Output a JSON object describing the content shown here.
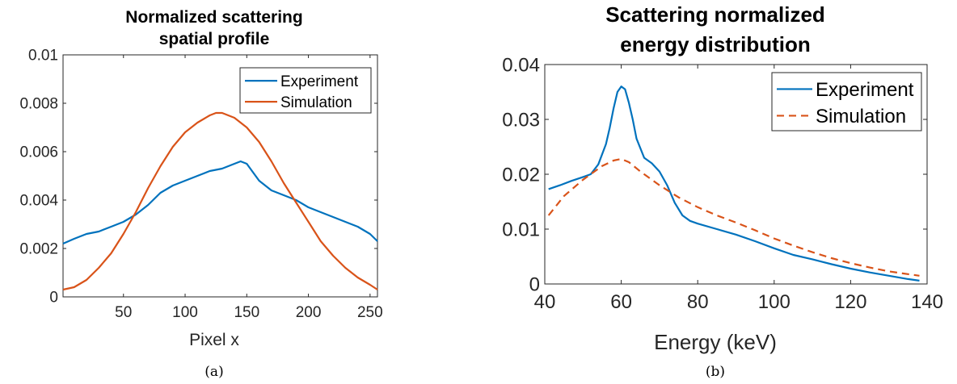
{
  "figure": {
    "captions": [
      "(a)",
      "(b)"
    ]
  },
  "chart_data": [
    {
      "type": "line",
      "title": [
        "Normalized scattering",
        "spatial profile"
      ],
      "xlabel": "Pixel x",
      "ylabel": "",
      "xlim": [
        1,
        256
      ],
      "ylim": [
        0,
        0.01
      ],
      "xticks": [
        50,
        100,
        150,
        200,
        250
      ],
      "yticks": [
        0,
        0.002,
        0.004,
        0.006,
        0.008,
        0.01
      ],
      "xtick_labels": [
        "50",
        "100",
        "150",
        "200",
        "250"
      ],
      "ytick_labels": [
        "0",
        "0.002",
        "0.004",
        "0.006",
        "0.008",
        "0.01"
      ],
      "grid": false,
      "legend": "top-right",
      "series": [
        {
          "name": "Experiment",
          "color": "#0072BD",
          "style": "solid",
          "x": [
            1,
            10,
            20,
            30,
            40,
            50,
            60,
            70,
            80,
            90,
            100,
            110,
            120,
            130,
            140,
            145,
            150,
            160,
            170,
            180,
            190,
            200,
            210,
            220,
            230,
            240,
            250,
            256
          ],
          "y": [
            0.0022,
            0.0024,
            0.0026,
            0.0027,
            0.0029,
            0.0031,
            0.0034,
            0.0038,
            0.0043,
            0.0046,
            0.0048,
            0.005,
            0.0052,
            0.0053,
            0.0055,
            0.0056,
            0.0055,
            0.0048,
            0.0044,
            0.0042,
            0.004,
            0.0037,
            0.0035,
            0.0033,
            0.0031,
            0.0029,
            0.0026,
            0.0023
          ]
        },
        {
          "name": "Simulation",
          "color": "#D95319",
          "style": "solid",
          "x": [
            1,
            10,
            20,
            30,
            40,
            50,
            60,
            70,
            80,
            90,
            100,
            110,
            120,
            125,
            130,
            140,
            150,
            160,
            170,
            180,
            190,
            200,
            210,
            220,
            230,
            240,
            250,
            256
          ],
          "y": [
            0.0003,
            0.0004,
            0.0007,
            0.0012,
            0.0018,
            0.0026,
            0.0035,
            0.0045,
            0.0054,
            0.0062,
            0.0068,
            0.0072,
            0.0075,
            0.0076,
            0.0076,
            0.0074,
            0.007,
            0.0064,
            0.0056,
            0.0047,
            0.0039,
            0.0031,
            0.0023,
            0.0017,
            0.0012,
            0.0008,
            0.0005,
            0.0003
          ]
        }
      ]
    },
    {
      "type": "line",
      "title": [
        "Scattering normalized",
        "energy distribution"
      ],
      "xlabel": "Energy (keV)",
      "ylabel": "",
      "xlim": [
        40,
        140
      ],
      "ylim": [
        0,
        0.04
      ],
      "xticks": [
        40,
        60,
        80,
        100,
        120,
        140
      ],
      "yticks": [
        0,
        0.01,
        0.02,
        0.03,
        0.04
      ],
      "xtick_labels": [
        "40",
        "60",
        "80",
        "100",
        "120",
        "140"
      ],
      "ytick_labels": [
        "0",
        "0.01",
        "0.02",
        "0.03",
        "0.04"
      ],
      "grid": false,
      "legend": "top-right",
      "series": [
        {
          "name": "Experiment",
          "color": "#0072BD",
          "style": "solid",
          "x": [
            41,
            44,
            47,
            50,
            52,
            54,
            56,
            57,
            58,
            59,
            60,
            61,
            62,
            63,
            64,
            66,
            68,
            70,
            72,
            74,
            76,
            78,
            80,
            85,
            90,
            95,
            100,
            105,
            110,
            115,
            120,
            125,
            130,
            135,
            138
          ],
          "y": [
            0.0173,
            0.018,
            0.0188,
            0.0195,
            0.02,
            0.0218,
            0.0255,
            0.0285,
            0.032,
            0.035,
            0.036,
            0.0355,
            0.033,
            0.03,
            0.0265,
            0.023,
            0.022,
            0.0205,
            0.018,
            0.0148,
            0.0125,
            0.0115,
            0.011,
            0.01,
            0.009,
            0.0078,
            0.0065,
            0.0053,
            0.0045,
            0.0036,
            0.0028,
            0.0021,
            0.0015,
            0.0009,
            0.0006
          ]
        },
        {
          "name": "Simulation",
          "color": "#D95319",
          "style": "dashed",
          "x": [
            41,
            45,
            50,
            55,
            58,
            60,
            62,
            65,
            70,
            75,
            80,
            85,
            90,
            95,
            100,
            105,
            110,
            115,
            120,
            125,
            130,
            135,
            138
          ],
          "y": [
            0.0125,
            0.016,
            0.019,
            0.0215,
            0.0225,
            0.0228,
            0.0222,
            0.0205,
            0.018,
            0.0158,
            0.014,
            0.0125,
            0.0112,
            0.0098,
            0.0083,
            0.007,
            0.0058,
            0.0047,
            0.0038,
            0.003,
            0.0023,
            0.0018,
            0.0015
          ]
        }
      ]
    }
  ]
}
